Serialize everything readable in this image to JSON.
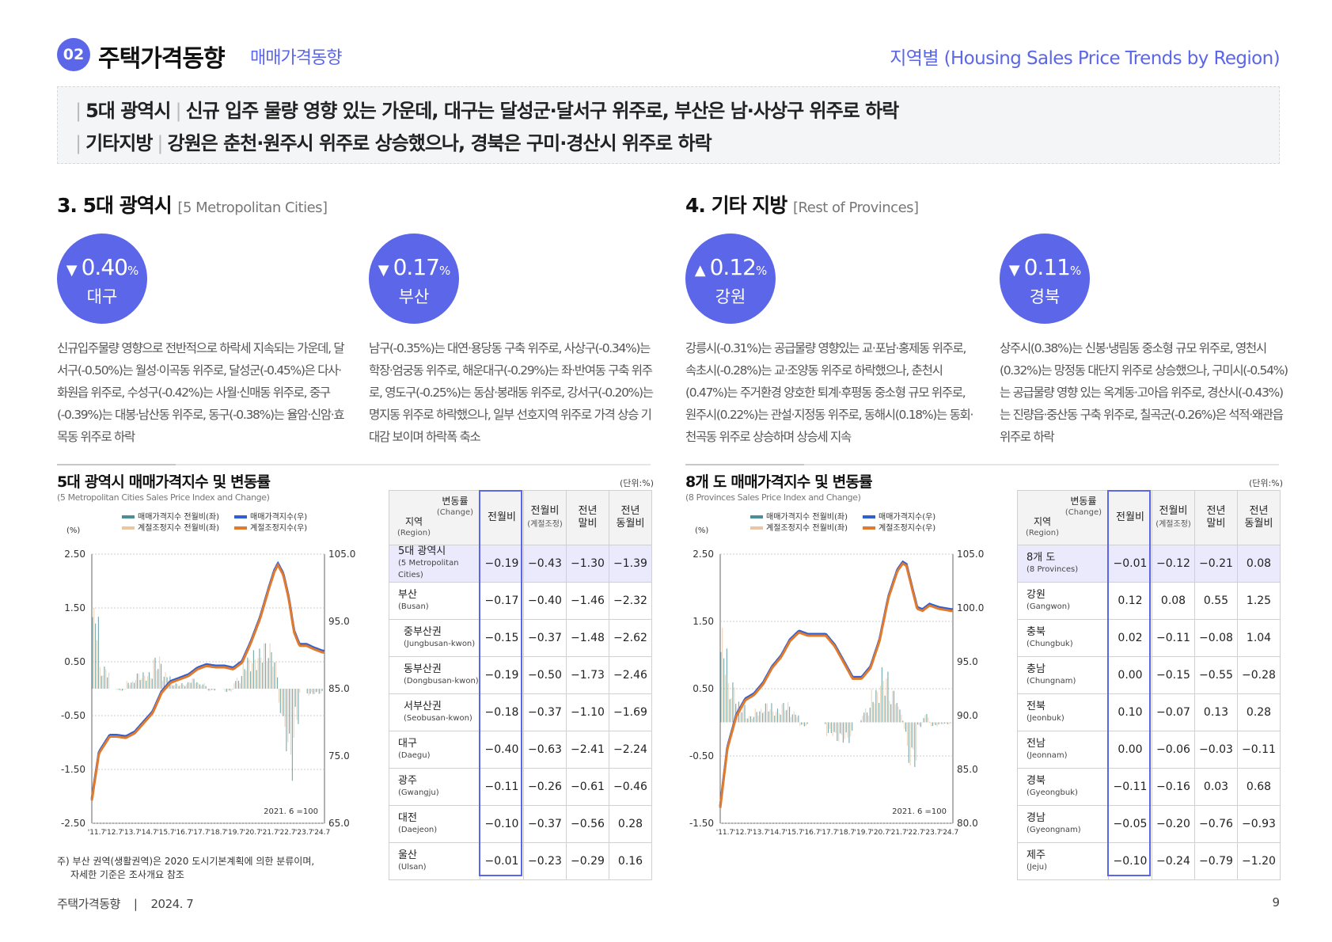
{
  "header": {
    "badge": "02",
    "title": "주택가격동향",
    "subtitle": "매매가격동향",
    "right": "지역별 (Housing Sales Price Trends by Region)"
  },
  "summary": {
    "line1_tag": "5대 광역시",
    "line1_text": "신규 입주 물량 영향 있는 가운데, 대구는 달성군·달서구 위주로, 부산은 남·사상구 위주로 하락",
    "line2_tag": "기타지방",
    "line2_text": "강원은 춘천·원주시 위주로 상승했으나, 경북은 구미·경산시 위주로 하락"
  },
  "sections": {
    "metro_title": "3. 5대 광역시",
    "metro_en": "[5 Metropolitan Cities]",
    "prov_title": "4. 기타 지방",
    "prov_en": "[Rest of Provinces]"
  },
  "highlights": [
    {
      "arrow": "▼",
      "value": "0.40",
      "unit": "%",
      "region": "대구",
      "text": "신규입주물량 영향으로 전반적으로 하락세 지속되는 가운데, 달서구(-0.50%)는 월성·이곡동 위주로, 달성군(-0.45%)은 다사·화원읍 위주로, 수성구(-0.42%)는 사월·신매동 위주로, 중구(-0.39%)는 대봉·남산동 위주로, 동구(-0.38%)는 율암·신암·효목동 위주로 하락"
    },
    {
      "arrow": "▼",
      "value": "0.17",
      "unit": "%",
      "region": "부산",
      "text": "남구(-0.35%)는 대연·용당동 구축 위주로, 사상구(-0.34%)는 학장·엄궁동 위주로, 해운대구(-0.29%)는 좌·반여동 구축 위주로, 영도구(-0.25%)는 동삼·봉래동 위주로, 강서구(-0.20%)는 명지동 위주로 하락했으나, 일부 선호지역 위주로 가격 상승 기대감 보이며 하락폭 축소"
    },
    {
      "arrow": "▲",
      "value": "0.12",
      "unit": "%",
      "region": "강원",
      "text": "강릉시(-0.31%)는 공급물량 영향있는 교·포남·홍제동 위주로, 속초시(-0.28%)는 교·조양동 위주로 하락했으나, 춘천시(0.47%)는 주거환경 양호한 퇴계·후평동 중소형 규모 위주로, 원주시(0.22%)는 관설·지정동 위주로, 동해시(0.18%)는 동회·천곡동 위주로 상승하며 상승세 지속"
    },
    {
      "arrow": "▼",
      "value": "0.11",
      "unit": "%",
      "region": "경북",
      "text": "상주시(0.38%)는 신봉·냉림동 중소형 규모 위주로, 영천시(0.32%)는 망정동 대단지 위주로 상승했으나, 구미시(-0.54%)는 공급물량 영향 있는 옥계동·고아읍 위주로, 경산시(-0.43%)는 진량읍·중산동 구축 위주로, 칠곡군(-0.26%)은 석적·왜관읍 위주로 하락"
    }
  ],
  "legend": {
    "bar_main": "매매가격지수 전월비(좌)",
    "bar_sa": "계절조정지수 전월비(좌)",
    "line_main": "매매가격지수(우)",
    "line_sa": "계절조정지수(우)",
    "pct_label": "(%)",
    "base_note": "2021. 6 =100",
    "colors": {
      "bar_main": "#4a8f95",
      "bar_sa": "#e9c7a6",
      "line_main": "#2f5fd0",
      "line_sa": "#e07a2e"
    }
  },
  "metro_chart": {
    "title": "5대 광역시 매매가격지수 및 변동률",
    "subtitle": "(5 Metropolitan Cities Sales Price Index and Change)",
    "unit": "(단위:%)"
  },
  "prov_chart": {
    "title": "8개 도 매매가격지수 및 변동률",
    "subtitle": "(8 Provinces Sales Price Index and Change)",
    "unit": "(단위:%)"
  },
  "chart_data": [
    {
      "type": "line",
      "title": "5대 광역시 매매가격지수 및 변동률",
      "x_tick_labels": [
        "'11.7",
        "'12.7",
        "'13.7",
        "'14.7",
        "'15.7",
        "'16.7",
        "'17.7",
        "'18.7",
        "'19.7",
        "'20.7",
        "'21.7",
        "'22.7",
        "'23.7",
        "'24.7"
      ],
      "y_left_ticks": [
        "2.50",
        "1.50",
        "0.50",
        "-0.50",
        "-1.50",
        "-2.50"
      ],
      "y_left_range": [
        -2.5,
        2.5
      ],
      "y_right_ticks": [
        "105.0",
        "95.0",
        "85.0",
        "75.0",
        "65.0"
      ],
      "y_right_range": [
        65,
        105
      ],
      "index_points": [
        [
          2011.6,
          68.5
        ],
        [
          2012.0,
          75.5
        ],
        [
          2012.6,
          78.0
        ],
        [
          2013.0,
          78.0
        ],
        [
          2013.5,
          77.8
        ],
        [
          2014.0,
          78.5
        ],
        [
          2014.5,
          80.0
        ],
        [
          2015.0,
          81.5
        ],
        [
          2015.5,
          84.5
        ],
        [
          2016.0,
          86.0
        ],
        [
          2016.5,
          86.5
        ],
        [
          2017.0,
          87.0
        ],
        [
          2017.5,
          88.0
        ],
        [
          2018.0,
          88.5
        ],
        [
          2018.5,
          88.3
        ],
        [
          2019.0,
          88.3
        ],
        [
          2019.5,
          88.0
        ],
        [
          2020.0,
          89.0
        ],
        [
          2020.5,
          92.0
        ],
        [
          2021.0,
          95.5
        ],
        [
          2021.5,
          100.0
        ],
        [
          2021.8,
          102.5
        ],
        [
          2022.0,
          103.5
        ],
        [
          2022.3,
          102.0
        ],
        [
          2022.6,
          98.5
        ],
        [
          2022.9,
          93.5
        ],
        [
          2023.2,
          91.5
        ],
        [
          2023.6,
          91.5
        ],
        [
          2024.0,
          91.0
        ],
        [
          2024.5,
          90.5
        ]
      ],
      "change_series_note": "monthly change (%) plotted as bars on left axis"
    },
    {
      "type": "line",
      "title": "8개 도 매매가격지수 및 변동률",
      "x_tick_labels": [
        "'11.7",
        "'12.7",
        "'13.7",
        "'14.7",
        "'15.7",
        "'16.7",
        "'17.7",
        "'18.7",
        "'19.7",
        "'20.7",
        "'21.7",
        "'22.7",
        "'23.7",
        "'24.7"
      ],
      "y_left_ticks": [
        "2.50",
        "1.50",
        "0.50",
        "-0.50",
        "-1.50"
      ],
      "y_left_range": [
        -1.5,
        2.5
      ],
      "y_right_ticks": [
        "105.0",
        "100.0",
        "95.0",
        "90.0",
        "85.0",
        "80.0"
      ],
      "y_right_range": [
        80,
        105
      ],
      "index_points": [
        [
          2011.6,
          81.5
        ],
        [
          2012.0,
          87.0
        ],
        [
          2012.5,
          90.0
        ],
        [
          2013.0,
          91.5
        ],
        [
          2013.5,
          92.0
        ],
        [
          2014.0,
          93.0
        ],
        [
          2014.5,
          94.5
        ],
        [
          2015.0,
          95.5
        ],
        [
          2015.5,
          97.0
        ],
        [
          2016.0,
          97.8
        ],
        [
          2016.5,
          97.5
        ],
        [
          2017.0,
          97.5
        ],
        [
          2017.5,
          97.5
        ],
        [
          2018.0,
          96.5
        ],
        [
          2018.5,
          95.0
        ],
        [
          2019.0,
          93.5
        ],
        [
          2019.5,
          93.5
        ],
        [
          2020.0,
          94.5
        ],
        [
          2020.5,
          97.0
        ],
        [
          2021.0,
          101.0
        ],
        [
          2021.5,
          103.5
        ],
        [
          2021.8,
          104.2
        ],
        [
          2022.0,
          104.0
        ],
        [
          2022.3,
          102.0
        ],
        [
          2022.6,
          100.0
        ],
        [
          2022.9,
          99.8
        ],
        [
          2023.3,
          100.3
        ],
        [
          2023.8,
          100.0
        ],
        [
          2024.5,
          99.8
        ]
      ],
      "change_series_note": "monthly change (%) plotted as bars on left axis"
    }
  ],
  "tables": {
    "header": {
      "corner_top": "변동률",
      "corner_top_en": "(Change)",
      "corner_bot": "지역",
      "corner_bot_en": "(Region)",
      "col1": "전월비",
      "col2": "전월비",
      "col2_en": "(계절조정)",
      "col3a": "전년",
      "col3b": "말비",
      "col4a": "전년",
      "col4b": "동월비"
    },
    "metro_rows": [
      {
        "ko": "5대 광역시",
        "en": "(5 Metropolitan Cities)",
        "v": [
          "-0.19",
          "-0.43",
          "-1.30",
          "-1.39"
        ]
      },
      {
        "ko": "부산",
        "en": "(Busan)",
        "v": [
          "-0.17",
          "-0.40",
          "-1.46",
          "-2.32"
        ]
      },
      {
        "ko": "중부산권",
        "en": "(Jungbusan-kwon)",
        "v": [
          "-0.15",
          "-0.37",
          "-1.48",
          "-2.62"
        ],
        "indent": true
      },
      {
        "ko": "동부산권",
        "en": "(Dongbusan-kwon)",
        "v": [
          "-0.19",
          "-0.50",
          "-1.73",
          "-2.46"
        ],
        "indent": true
      },
      {
        "ko": "서부산권",
        "en": "(Seobusan-kwon)",
        "v": [
          "-0.18",
          "-0.37",
          "-1.10",
          "-1.69"
        ],
        "indent": true
      },
      {
        "ko": "대구",
        "en": "(Daegu)",
        "v": [
          "-0.40",
          "-0.63",
          "-2.41",
          "-2.24"
        ]
      },
      {
        "ko": "광주",
        "en": "(Gwangju)",
        "v": [
          "-0.11",
          "-0.26",
          "-0.61",
          "-0.46"
        ]
      },
      {
        "ko": "대전",
        "en": "(Daejeon)",
        "v": [
          "-0.10",
          "-0.37",
          "-0.56",
          "0.28"
        ]
      },
      {
        "ko": "울산",
        "en": "(Ulsan)",
        "v": [
          "-0.01",
          "-0.23",
          "-0.29",
          "0.16"
        ]
      }
    ],
    "prov_rows": [
      {
        "ko": "8개 도",
        "en": "(8 Provinces)",
        "v": [
          "-0.01",
          "-0.12",
          "-0.21",
          "0.08"
        ]
      },
      {
        "ko": "강원",
        "en": "(Gangwon)",
        "v": [
          "0.12",
          "0.08",
          "0.55",
          "1.25"
        ]
      },
      {
        "ko": "충북",
        "en": "(Chungbuk)",
        "v": [
          "0.02",
          "-0.11",
          "-0.08",
          "1.04"
        ]
      },
      {
        "ko": "충남",
        "en": "(Chungnam)",
        "v": [
          "0.00",
          "-0.15",
          "-0.55",
          "-0.28"
        ]
      },
      {
        "ko": "전북",
        "en": "(Jeonbuk)",
        "v": [
          "0.10",
          "-0.07",
          "0.13",
          "0.28"
        ]
      },
      {
        "ko": "전남",
        "en": "(Jeonnam)",
        "v": [
          "0.00",
          "-0.06",
          "-0.03",
          "-0.11"
        ]
      },
      {
        "ko": "경북",
        "en": "(Gyeongbuk)",
        "v": [
          "-0.11",
          "-0.16",
          "0.03",
          "0.68"
        ]
      },
      {
        "ko": "경남",
        "en": "(Gyeongnam)",
        "v": [
          "-0.05",
          "-0.20",
          "-0.76",
          "-0.93"
        ]
      },
      {
        "ko": "제주",
        "en": "(Jeju)",
        "v": [
          "-0.10",
          "-0.24",
          "-0.79",
          "-1.20"
        ]
      }
    ]
  },
  "note": {
    "line1": "주) 부산 권역(생활권역)은 2020 도시기본계획에 의한 분류이며,",
    "line2": "자세한 기준은 조사개요 참조"
  },
  "footer": {
    "left": "주택가격동향    |    2024. 7",
    "page": "9"
  }
}
